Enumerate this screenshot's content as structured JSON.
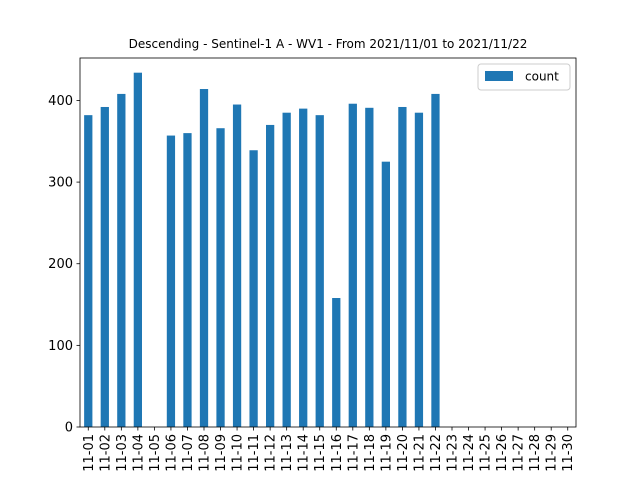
{
  "chart_data": {
    "type": "bar",
    "title": "Descending - Sentinel-1 A - WV1 - From 2021/11/01 to 2021/11/22",
    "xlabel": "",
    "ylabel": "",
    "categories": [
      "11-01",
      "11-02",
      "11-03",
      "11-04",
      "11-05",
      "11-06",
      "11-07",
      "11-08",
      "11-09",
      "11-10",
      "11-11",
      "11-12",
      "11-13",
      "11-14",
      "11-15",
      "11-16",
      "11-17",
      "11-18",
      "11-19",
      "11-20",
      "11-21",
      "11-22",
      "11-23",
      "11-24",
      "11-25",
      "11-26",
      "11-27",
      "11-28",
      "11-29",
      "11-30"
    ],
    "series": [
      {
        "name": "count",
        "color": "#1f77b4",
        "values": [
          382,
          392,
          408,
          434,
          0,
          357,
          360,
          414,
          366,
          395,
          339,
          370,
          385,
          390,
          382,
          158,
          396,
          391,
          325,
          392,
          385,
          408,
          0,
          0,
          0,
          0,
          0,
          0,
          0,
          0
        ]
      }
    ],
    "ylim": [
      0,
      452
    ],
    "yticks": [
      0,
      100,
      200,
      300,
      400
    ],
    "grid": false,
    "legend_position": "top-right"
  }
}
